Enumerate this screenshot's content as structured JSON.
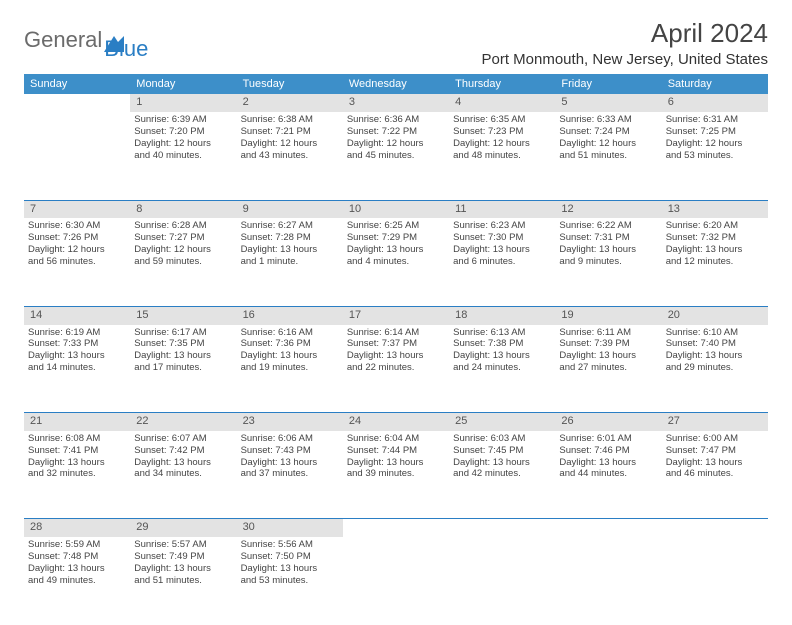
{
  "brand": {
    "word1": "General",
    "word2": "Blue"
  },
  "title": "April 2024",
  "location": "Port Monmouth, New Jersey, United States",
  "colors": {
    "header_bg": "#3d8fc9",
    "header_text": "#ffffff",
    "daynum_bg": "#e3e3e3",
    "rule": "#2a7ec4",
    "brand_blue": "#2a7ec4",
    "brand_gray": "#6b6b6b"
  },
  "weekdays": [
    "Sunday",
    "Monday",
    "Tuesday",
    "Wednesday",
    "Thursday",
    "Friday",
    "Saturday"
  ],
  "weeks": [
    [
      null,
      {
        "n": "1",
        "l1": "Sunrise: 6:39 AM",
        "l2": "Sunset: 7:20 PM",
        "l3": "Daylight: 12 hours",
        "l4": "and 40 minutes."
      },
      {
        "n": "2",
        "l1": "Sunrise: 6:38 AM",
        "l2": "Sunset: 7:21 PM",
        "l3": "Daylight: 12 hours",
        "l4": "and 43 minutes."
      },
      {
        "n": "3",
        "l1": "Sunrise: 6:36 AM",
        "l2": "Sunset: 7:22 PM",
        "l3": "Daylight: 12 hours",
        "l4": "and 45 minutes."
      },
      {
        "n": "4",
        "l1": "Sunrise: 6:35 AM",
        "l2": "Sunset: 7:23 PM",
        "l3": "Daylight: 12 hours",
        "l4": "and 48 minutes."
      },
      {
        "n": "5",
        "l1": "Sunrise: 6:33 AM",
        "l2": "Sunset: 7:24 PM",
        "l3": "Daylight: 12 hours",
        "l4": "and 51 minutes."
      },
      {
        "n": "6",
        "l1": "Sunrise: 6:31 AM",
        "l2": "Sunset: 7:25 PM",
        "l3": "Daylight: 12 hours",
        "l4": "and 53 minutes."
      }
    ],
    [
      {
        "n": "7",
        "l1": "Sunrise: 6:30 AM",
        "l2": "Sunset: 7:26 PM",
        "l3": "Daylight: 12 hours",
        "l4": "and 56 minutes."
      },
      {
        "n": "8",
        "l1": "Sunrise: 6:28 AM",
        "l2": "Sunset: 7:27 PM",
        "l3": "Daylight: 12 hours",
        "l4": "and 59 minutes."
      },
      {
        "n": "9",
        "l1": "Sunrise: 6:27 AM",
        "l2": "Sunset: 7:28 PM",
        "l3": "Daylight: 13 hours",
        "l4": "and 1 minute."
      },
      {
        "n": "10",
        "l1": "Sunrise: 6:25 AM",
        "l2": "Sunset: 7:29 PM",
        "l3": "Daylight: 13 hours",
        "l4": "and 4 minutes."
      },
      {
        "n": "11",
        "l1": "Sunrise: 6:23 AM",
        "l2": "Sunset: 7:30 PM",
        "l3": "Daylight: 13 hours",
        "l4": "and 6 minutes."
      },
      {
        "n": "12",
        "l1": "Sunrise: 6:22 AM",
        "l2": "Sunset: 7:31 PM",
        "l3": "Daylight: 13 hours",
        "l4": "and 9 minutes."
      },
      {
        "n": "13",
        "l1": "Sunrise: 6:20 AM",
        "l2": "Sunset: 7:32 PM",
        "l3": "Daylight: 13 hours",
        "l4": "and 12 minutes."
      }
    ],
    [
      {
        "n": "14",
        "l1": "Sunrise: 6:19 AM",
        "l2": "Sunset: 7:33 PM",
        "l3": "Daylight: 13 hours",
        "l4": "and 14 minutes."
      },
      {
        "n": "15",
        "l1": "Sunrise: 6:17 AM",
        "l2": "Sunset: 7:35 PM",
        "l3": "Daylight: 13 hours",
        "l4": "and 17 minutes."
      },
      {
        "n": "16",
        "l1": "Sunrise: 6:16 AM",
        "l2": "Sunset: 7:36 PM",
        "l3": "Daylight: 13 hours",
        "l4": "and 19 minutes."
      },
      {
        "n": "17",
        "l1": "Sunrise: 6:14 AM",
        "l2": "Sunset: 7:37 PM",
        "l3": "Daylight: 13 hours",
        "l4": "and 22 minutes."
      },
      {
        "n": "18",
        "l1": "Sunrise: 6:13 AM",
        "l2": "Sunset: 7:38 PM",
        "l3": "Daylight: 13 hours",
        "l4": "and 24 minutes."
      },
      {
        "n": "19",
        "l1": "Sunrise: 6:11 AM",
        "l2": "Sunset: 7:39 PM",
        "l3": "Daylight: 13 hours",
        "l4": "and 27 minutes."
      },
      {
        "n": "20",
        "l1": "Sunrise: 6:10 AM",
        "l2": "Sunset: 7:40 PM",
        "l3": "Daylight: 13 hours",
        "l4": "and 29 minutes."
      }
    ],
    [
      {
        "n": "21",
        "l1": "Sunrise: 6:08 AM",
        "l2": "Sunset: 7:41 PM",
        "l3": "Daylight: 13 hours",
        "l4": "and 32 minutes."
      },
      {
        "n": "22",
        "l1": "Sunrise: 6:07 AM",
        "l2": "Sunset: 7:42 PM",
        "l3": "Daylight: 13 hours",
        "l4": "and 34 minutes."
      },
      {
        "n": "23",
        "l1": "Sunrise: 6:06 AM",
        "l2": "Sunset: 7:43 PM",
        "l3": "Daylight: 13 hours",
        "l4": "and 37 minutes."
      },
      {
        "n": "24",
        "l1": "Sunrise: 6:04 AM",
        "l2": "Sunset: 7:44 PM",
        "l3": "Daylight: 13 hours",
        "l4": "and 39 minutes."
      },
      {
        "n": "25",
        "l1": "Sunrise: 6:03 AM",
        "l2": "Sunset: 7:45 PM",
        "l3": "Daylight: 13 hours",
        "l4": "and 42 minutes."
      },
      {
        "n": "26",
        "l1": "Sunrise: 6:01 AM",
        "l2": "Sunset: 7:46 PM",
        "l3": "Daylight: 13 hours",
        "l4": "and 44 minutes."
      },
      {
        "n": "27",
        "l1": "Sunrise: 6:00 AM",
        "l2": "Sunset: 7:47 PM",
        "l3": "Daylight: 13 hours",
        "l4": "and 46 minutes."
      }
    ],
    [
      {
        "n": "28",
        "l1": "Sunrise: 5:59 AM",
        "l2": "Sunset: 7:48 PM",
        "l3": "Daylight: 13 hours",
        "l4": "and 49 minutes."
      },
      {
        "n": "29",
        "l1": "Sunrise: 5:57 AM",
        "l2": "Sunset: 7:49 PM",
        "l3": "Daylight: 13 hours",
        "l4": "and 51 minutes."
      },
      {
        "n": "30",
        "l1": "Sunrise: 5:56 AM",
        "l2": "Sunset: 7:50 PM",
        "l3": "Daylight: 13 hours",
        "l4": "and 53 minutes."
      },
      null,
      null,
      null,
      null
    ]
  ]
}
